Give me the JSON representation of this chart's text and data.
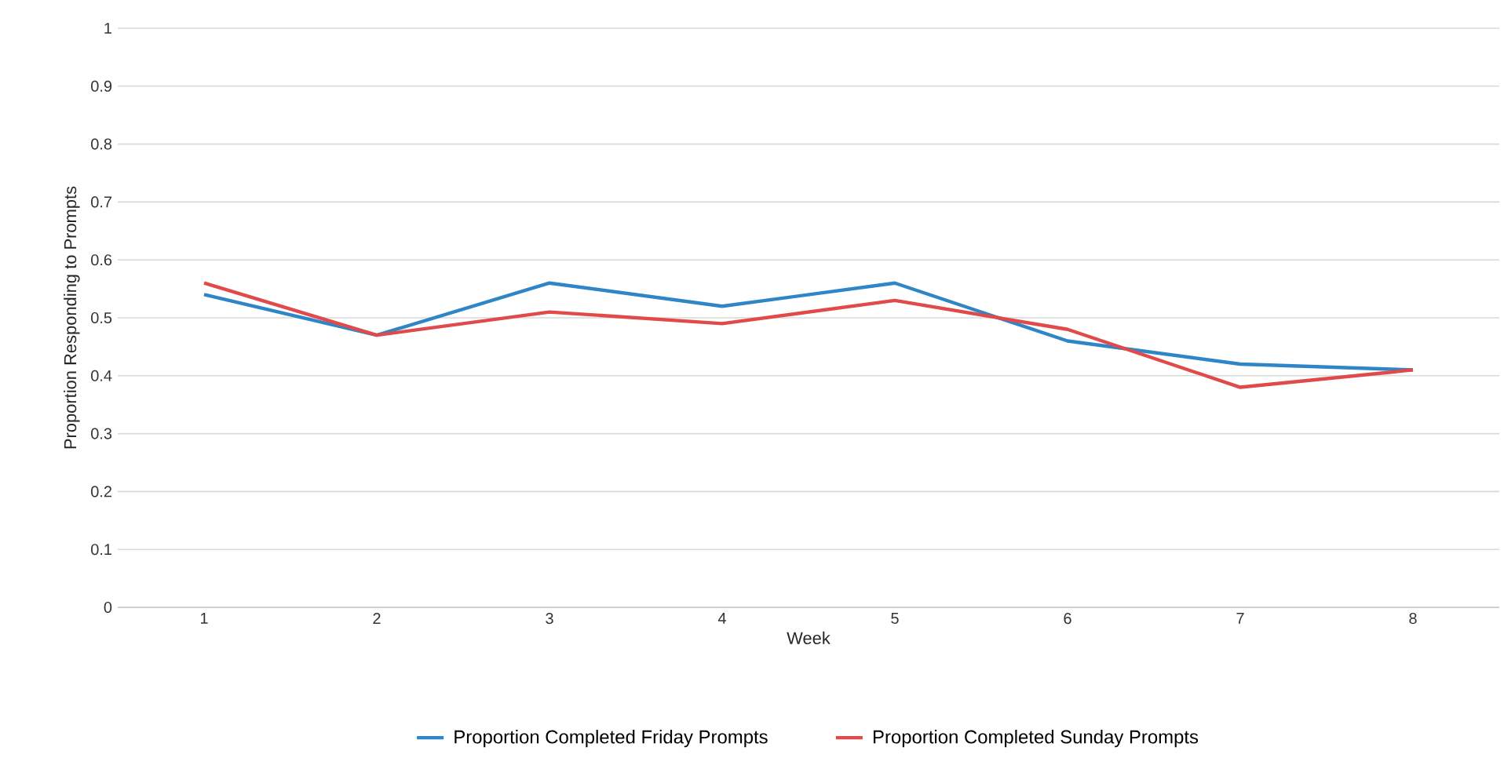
{
  "chart_data": {
    "type": "line",
    "xlabel": "Week",
    "ylabel": "Proportion Responding to Prompts",
    "categories": [
      "1",
      "2",
      "3",
      "4",
      "5",
      "6",
      "7",
      "8"
    ],
    "series": [
      {
        "name": "Proportion Completed Friday Prompts",
        "color": "#2e86c8",
        "values": [
          0.54,
          0.47,
          0.56,
          0.52,
          0.56,
          0.46,
          0.42,
          0.41
        ]
      },
      {
        "name": "Proportion Completed Sunday Prompts",
        "color": "#e04a4a",
        "values": [
          0.56,
          0.47,
          0.51,
          0.49,
          0.53,
          0.48,
          0.38,
          0.41
        ]
      }
    ],
    "ylim": [
      0,
      1
    ],
    "yticks": [
      0,
      0.1,
      0.2,
      0.3,
      0.4,
      0.5,
      0.6,
      0.7,
      0.8,
      0.9,
      1
    ],
    "grid": "y",
    "legend": "bottom",
    "marker": "none",
    "line_style": "solid"
  }
}
